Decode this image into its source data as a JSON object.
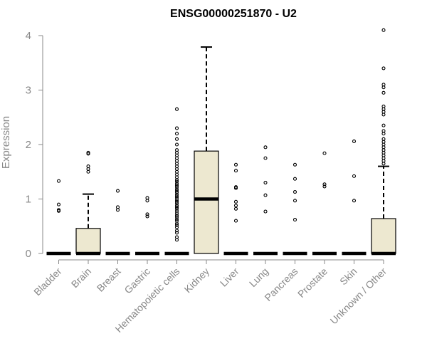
{
  "chart_data": {
    "type": "box",
    "title": "ENSG00000251870 - U2",
    "ylabel": "Expression",
    "ylim": [
      0,
      4.1
    ],
    "yticks": [
      "0",
      "1",
      "2",
      "3",
      "4"
    ],
    "box_fill": "#ede8d0",
    "categories": [
      "Bladder",
      "Brain",
      "Breast",
      "Gastric",
      "Hematopoietic cells",
      "Kidney",
      "Liver",
      "Lung",
      "Pancreas",
      "Prostate",
      "Skin",
      "Unknown / Other"
    ],
    "boxes": [
      {
        "q1": 0,
        "median": 0,
        "q3": 0,
        "whisker_low": 0,
        "whisker_high": 0,
        "outliers": [
          0.78,
          0.8,
          0.9,
          1.33
        ]
      },
      {
        "q1": 0,
        "median": 0,
        "q3": 0.46,
        "whisker_low": 0,
        "whisker_high": 1.09,
        "outliers": [
          1.5,
          1.55,
          1.6,
          1.83,
          1.85
        ]
      },
      {
        "q1": 0,
        "median": 0,
        "q3": 0,
        "whisker_low": 0,
        "whisker_high": 0,
        "outliers": [
          0.8,
          0.85,
          1.15
        ]
      },
      {
        "q1": 0,
        "median": 0,
        "q3": 0,
        "whisker_low": 0,
        "whisker_high": 0,
        "outliers": [
          0.68,
          0.72,
          0.97,
          1.02
        ]
      },
      {
        "q1": 0,
        "median": 0,
        "q3": 0,
        "whisker_low": 0,
        "whisker_high": 0,
        "outliers": [
          0.25,
          0.3,
          0.38,
          0.42,
          0.48,
          0.52,
          0.55,
          0.6,
          0.63,
          0.67,
          0.7,
          0.74,
          0.78,
          0.82,
          0.85,
          0.88,
          0.92,
          0.95,
          0.98,
          1.02,
          1.05,
          1.08,
          1.12,
          1.15,
          1.18,
          1.22,
          1.25,
          1.28,
          1.32,
          1.35,
          1.4,
          1.45,
          1.5,
          1.55,
          1.6,
          1.65,
          1.7,
          1.75,
          1.8,
          1.85,
          1.9,
          2.0,
          2.1,
          2.2,
          2.3,
          2.65
        ]
      },
      {
        "q1": 0,
        "median": 1.0,
        "q3": 1.88,
        "whisker_low": 0,
        "whisker_high": 3.79,
        "outliers": []
      },
      {
        "q1": 0,
        "median": 0,
        "q3": 0,
        "whisker_low": 0,
        "whisker_high": 0,
        "outliers": [
          0.6,
          0.82,
          0.88,
          0.95,
          1.2,
          1.22,
          1.52,
          1.63
        ]
      },
      {
        "q1": 0,
        "median": 0,
        "q3": 0,
        "whisker_low": 0,
        "whisker_high": 0,
        "outliers": [
          0.77,
          1.07,
          1.3,
          1.75,
          1.95
        ]
      },
      {
        "q1": 0,
        "median": 0,
        "q3": 0,
        "whisker_low": 0,
        "whisker_high": 0,
        "outliers": [
          0.62,
          0.97,
          1.13,
          1.37,
          1.63
        ]
      },
      {
        "q1": 0,
        "median": 0,
        "q3": 0,
        "whisker_low": 0,
        "whisker_high": 0,
        "outliers": [
          1.23,
          1.27,
          1.84
        ]
      },
      {
        "q1": 0,
        "median": 0,
        "q3": 0,
        "whisker_low": 0,
        "whisker_high": 0,
        "outliers": [
          0.97,
          1.42,
          2.06
        ]
      },
      {
        "q1": 0,
        "median": 0,
        "q3": 0.64,
        "whisker_low": 0,
        "whisker_high": 1.6,
        "outliers": [
          1.65,
          1.7,
          1.75,
          1.8,
          1.85,
          1.9,
          1.95,
          2.0,
          2.05,
          2.1,
          2.2,
          2.25,
          2.35,
          2.55,
          2.6,
          2.65,
          2.7,
          2.95,
          3.05,
          3.1,
          3.4,
          4.1
        ]
      }
    ]
  }
}
